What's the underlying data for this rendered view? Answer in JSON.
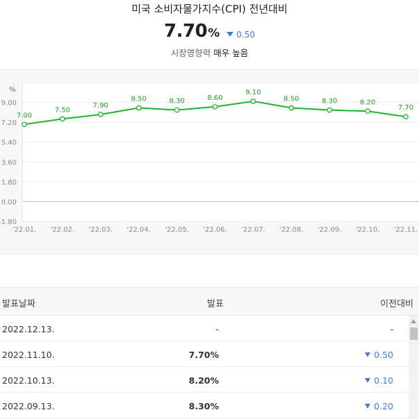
{
  "header": {
    "title": "미국 소비자물가지수(CPI) 전년대비",
    "value": "7.70",
    "unit": "%",
    "change": "0.50",
    "impact_prefix": "시장영향력",
    "impact_level": "매우 높음"
  },
  "colors": {
    "line": "#1cb529",
    "down": "#3b7ddd",
    "zero_line": "#a9c4e6"
  },
  "chart_data": {
    "type": "line",
    "ylabel": "%",
    "y_ticks": [
      "9.00",
      "7.20",
      "5.40",
      "3.60",
      "1.80",
      "0.00",
      "-1.80"
    ],
    "ylim": [
      -1.8,
      10.8
    ],
    "x_tick_labels": [
      "'22.01.",
      "'22.02.",
      "'22.03.",
      "'22.04.",
      "'22.05.",
      "'22.06.",
      "'22.07.",
      "'22.08.",
      "'22.09.",
      "'22.10.",
      "'22.11."
    ],
    "point_labels": [
      "7.00",
      "7.50",
      "7.90",
      "8.50",
      "8.30",
      "8.60",
      "9.10",
      "8.50",
      "8.30",
      "8.20",
      "7.70"
    ],
    "series": [
      {
        "values": [
          7.0,
          7.5,
          7.9,
          8.5,
          8.3,
          8.6,
          9.1,
          8.5,
          8.3,
          8.2,
          7.7
        ]
      }
    ],
    "grid": true,
    "zero_line": true
  },
  "table": {
    "headers": {
      "date": "발표날짜",
      "value": "발표",
      "prev": "이전대비"
    },
    "rows": [
      {
        "date": "2022.12.13.",
        "value": "-",
        "prev": "-",
        "down": false
      },
      {
        "date": "2022.11.10.",
        "value": "7.70%",
        "prev": "0.50",
        "down": true
      },
      {
        "date": "2022.10.13.",
        "value": "8.20%",
        "prev": "0.10",
        "down": true
      },
      {
        "date": "2022.09.13.",
        "value": "8.30%",
        "prev": "0.20",
        "down": true
      }
    ]
  }
}
